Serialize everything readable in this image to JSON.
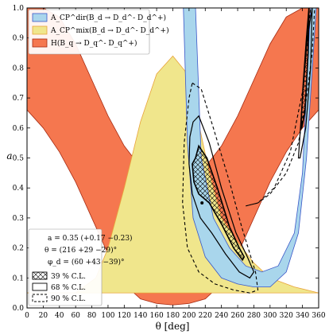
{
  "chart_data": {
    "type": "area",
    "title": "",
    "xlabel": "θ [deg]",
    "ylabel": "a",
    "xlim": [
      0,
      360
    ],
    "ylim": [
      0,
      1.0
    ],
    "x_ticks": [
      0,
      20,
      40,
      60,
      80,
      100,
      120,
      140,
      160,
      180,
      200,
      220,
      240,
      260,
      280,
      300,
      320,
      340,
      360
    ],
    "y_ticks": [
      0.0,
      0.1,
      0.2,
      0.3,
      0.4,
      0.5,
      0.6,
      0.7,
      0.8,
      0.9,
      1.0
    ],
    "x_tick_labels": [
      "0",
      "20",
      "40",
      "60",
      "80",
      "100",
      "120",
      "140",
      "160",
      "180",
      "200",
      "220",
      "240",
      "260",
      "280",
      "300",
      "320",
      "340",
      "360"
    ],
    "y_tick_labels": [
      "0.0",
      "0.1",
      "0.2",
      "0.3",
      "0.4",
      "0.5",
      "0.6",
      "0.7",
      "0.8",
      "0.9",
      "1.0"
    ],
    "legend_top": {
      "placement": "top-left",
      "entries": [
        {
          "label": "A_CP^dir(B_d → D_d^- D_d^+)",
          "color": "#a9d6ec",
          "edge": "#3a57c8"
        },
        {
          "label": "A_CP^mix(B_d → D_d^- D_d^+)",
          "color": "#f0e68c",
          "edge": "#e8a33a"
        },
        {
          "label": "H(B_q → D_q^- D_q^+)",
          "color": "#f5774f",
          "edge": "#a62a12"
        }
      ]
    },
    "legend_bottom": {
      "placement": "bottom-left",
      "result_lines": [
        "a = 0.35 (+0.17 −0.23)",
        "θ = (216 +29 −29)°",
        "φ_d = (60 +43 −39)°"
      ],
      "entries": [
        {
          "label": "39 % C.L.",
          "style": "hatched"
        },
        {
          "label": "68 % C.L.",
          "style": "solid"
        },
        {
          "label": "90 % C.L.",
          "style": "dashed"
        }
      ]
    },
    "best_fit": {
      "theta": 216,
      "a": 0.35
    },
    "series": [
      {
        "name": "H(B_q → D_q^- D_q^+)",
        "color": "#f5774f",
        "lower": {
          "x": [
            0,
            20,
            40,
            60,
            80,
            100,
            120,
            140,
            160,
            180,
            200,
            220,
            240,
            260,
            280,
            300,
            320,
            340,
            360
          ],
          "y": [
            0.66,
            0.6,
            0.52,
            0.42,
            0.3,
            0.18,
            0.08,
            0.03,
            0.015,
            0.01,
            0.015,
            0.03,
            0.08,
            0.18,
            0.3,
            0.42,
            0.52,
            0.6,
            0.66
          ]
        },
        "upper": {
          "x": [
            0,
            20,
            40,
            60,
            80,
            100,
            120,
            140,
            160,
            180,
            200,
            220,
            240,
            260,
            280,
            300,
            320,
            340,
            360
          ],
          "y": [
            1.0,
            1.0,
            0.97,
            0.88,
            0.76,
            0.64,
            0.54,
            0.47,
            0.44,
            0.43,
            0.44,
            0.47,
            0.54,
            0.64,
            0.76,
            0.88,
            0.97,
            1.0,
            1.0
          ]
        }
      },
      {
        "name": "A_CP^mix(B_d → D_d^- D_d^+)",
        "color": "#f0e68c",
        "lower": {
          "x": [
            0,
            60,
            100,
            140,
            180,
            220,
            260,
            300,
            340,
            360
          ],
          "y": [
            0.05,
            0.05,
            0.05,
            0.05,
            0.05,
            0.05,
            0.05,
            0.05,
            0.05,
            0.05
          ]
        },
        "upper": {
          "x": [
            0,
            60,
            85,
            100,
            120,
            140,
            160,
            180,
            195,
            210,
            225,
            240,
            260,
            280,
            300,
            330,
            360
          ],
          "y": [
            0.05,
            0.05,
            0.1,
            0.2,
            0.4,
            0.62,
            0.78,
            0.84,
            0.79,
            0.64,
            0.45,
            0.3,
            0.22,
            0.15,
            0.1,
            0.07,
            0.05
          ]
        }
      },
      {
        "name": "A_CP^dir(B_d → D_d^- D_d^+)",
        "color": "#a9d6ec",
        "lower": {
          "x": [
            208,
            215,
            230,
            250,
            270,
            290,
            310,
            330,
            340,
            350
          ],
          "y": [
            1.0,
            0.5,
            0.3,
            0.2,
            0.14,
            0.12,
            0.14,
            0.25,
            0.45,
            1.0
          ]
        },
        "upper": {
          "x": [
            193,
            198,
            205,
            220,
            240,
            260,
            280,
            300,
            320,
            335,
            345,
            357
          ],
          "y": [
            1.0,
            0.55,
            0.3,
            0.17,
            0.1,
            0.08,
            0.07,
            0.07,
            0.12,
            0.25,
            0.5,
            1.0
          ]
        }
      }
    ],
    "contours": [
      {
        "level": "39 % C.L.",
        "style": "hatched",
        "x": [
          208,
          212,
          222,
          235,
          250,
          262,
          268,
          266,
          255,
          240,
          225,
          212,
          206,
          204,
          208
        ],
        "y": [
          0.5,
          0.54,
          0.5,
          0.4,
          0.27,
          0.2,
          0.17,
          0.16,
          0.2,
          0.28,
          0.35,
          0.38,
          0.42,
          0.48,
          0.5
        ]
      },
      {
        "level": "39 % C.L.",
        "style": "hatched",
        "x": [
          338,
          341,
          345,
          348,
          347,
          343,
          339,
          338
        ],
        "y": [
          0.6,
          0.75,
          0.9,
          1.0,
          0.85,
          0.65,
          0.6,
          0.6
        ]
      },
      {
        "level": "68 % C.L.",
        "style": "solid",
        "x": [
          205,
          212,
          225,
          240,
          258,
          272,
          280,
          275,
          262,
          245,
          228,
          214,
          204,
          200,
          201,
          205
        ],
        "y": [
          0.62,
          0.64,
          0.55,
          0.4,
          0.25,
          0.17,
          0.12,
          0.1,
          0.12,
          0.18,
          0.25,
          0.3,
          0.38,
          0.48,
          0.57,
          0.62
        ]
      },
      {
        "level": "68 % C.L.",
        "style": "solid",
        "x": [
          335,
          340,
          346,
          352,
          350,
          344,
          337,
          335
        ],
        "y": [
          0.5,
          0.7,
          0.9,
          1.0,
          0.8,
          0.6,
          0.5,
          0.5
        ]
      },
      {
        "level": "90 % C.L.",
        "style": "dashed",
        "x": [
          204,
          215,
          230,
          250,
          265,
          282,
          285,
          275,
          255,
          232,
          212,
          198,
          192,
          194,
          200,
          204
        ],
        "y": [
          0.75,
          0.73,
          0.6,
          0.42,
          0.27,
          0.12,
          0.06,
          0.05,
          0.06,
          0.08,
          0.12,
          0.2,
          0.35,
          0.55,
          0.7,
          0.75
        ]
      },
      {
        "level": "90 % C.L.",
        "style": "dashed",
        "x": [
          270,
          285,
          300,
          320,
          335,
          345,
          352,
          355,
          350,
          340,
          325,
          305,
          285,
          270
        ],
        "y": [
          0.34,
          0.35,
          0.38,
          0.45,
          0.55,
          0.7,
          0.85,
          1.0,
          1.0,
          0.72,
          0.52,
          0.4,
          0.35,
          0.34
        ]
      }
    ]
  }
}
